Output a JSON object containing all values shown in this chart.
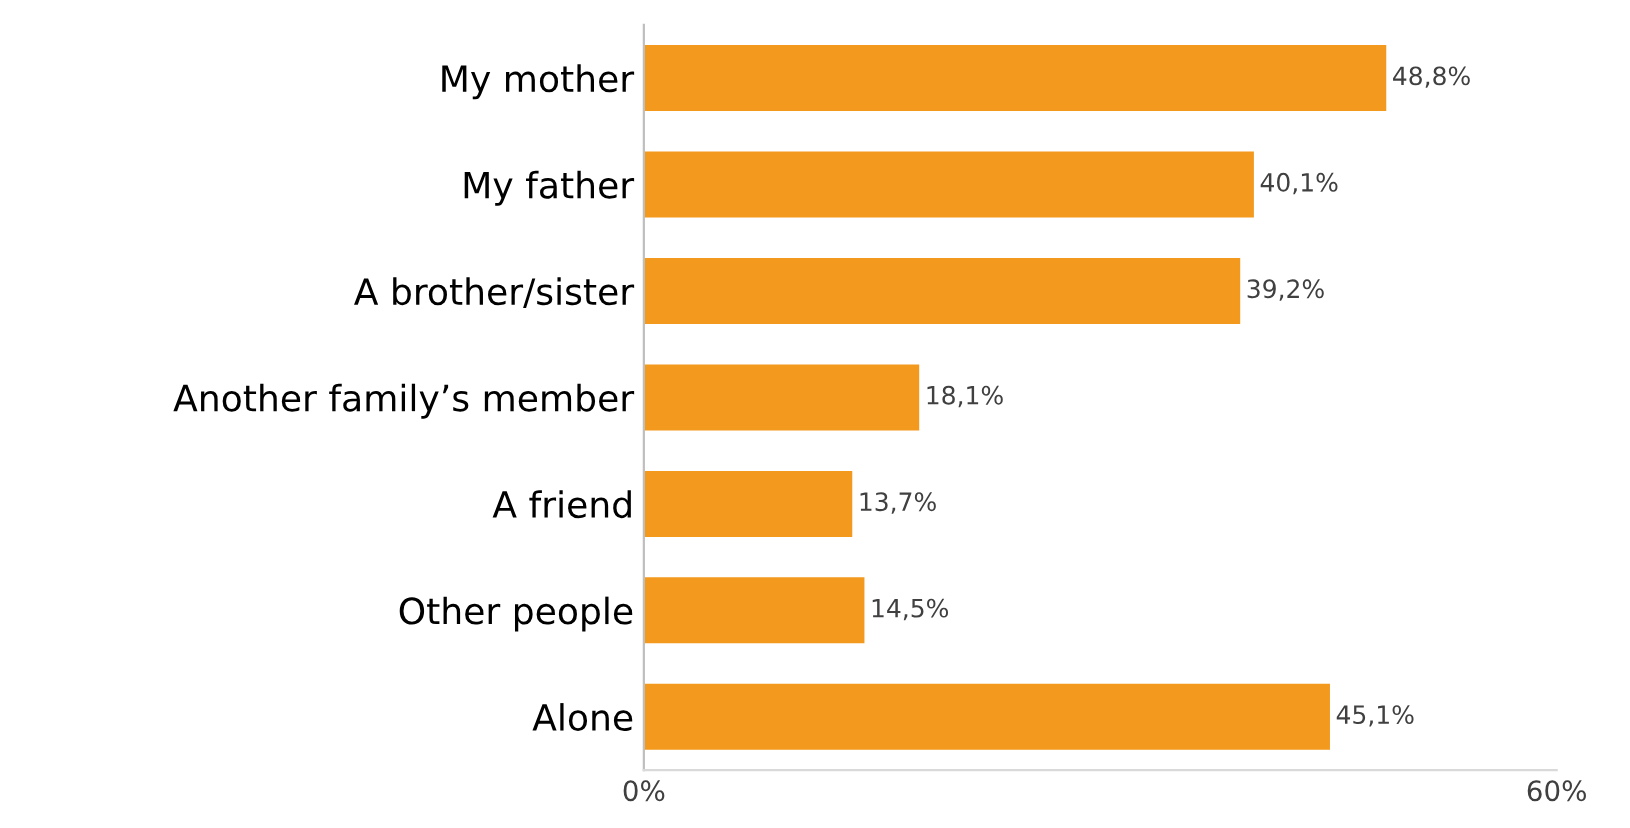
{
  "chart_data": {
    "type": "bar",
    "orientation": "horizontal",
    "categories": [
      "My mother",
      "My father",
      "A brother/sister",
      "Another family’s member",
      "A friend",
      "Other people",
      "Alone"
    ],
    "values": [
      48.8,
      40.1,
      39.2,
      18.1,
      13.7,
      14.5,
      45.1
    ],
    "value_labels": [
      "48,8%",
      "40,1%",
      "39,2%",
      "18,1%",
      "13,7%",
      "14,5%",
      "45,1%"
    ],
    "color": "#f39a1e",
    "xlim": [
      0,
      60
    ],
    "xticks": [
      {
        "value": 0,
        "label": "0%"
      },
      {
        "value": 60,
        "label": "60%"
      }
    ],
    "grid": false
  }
}
